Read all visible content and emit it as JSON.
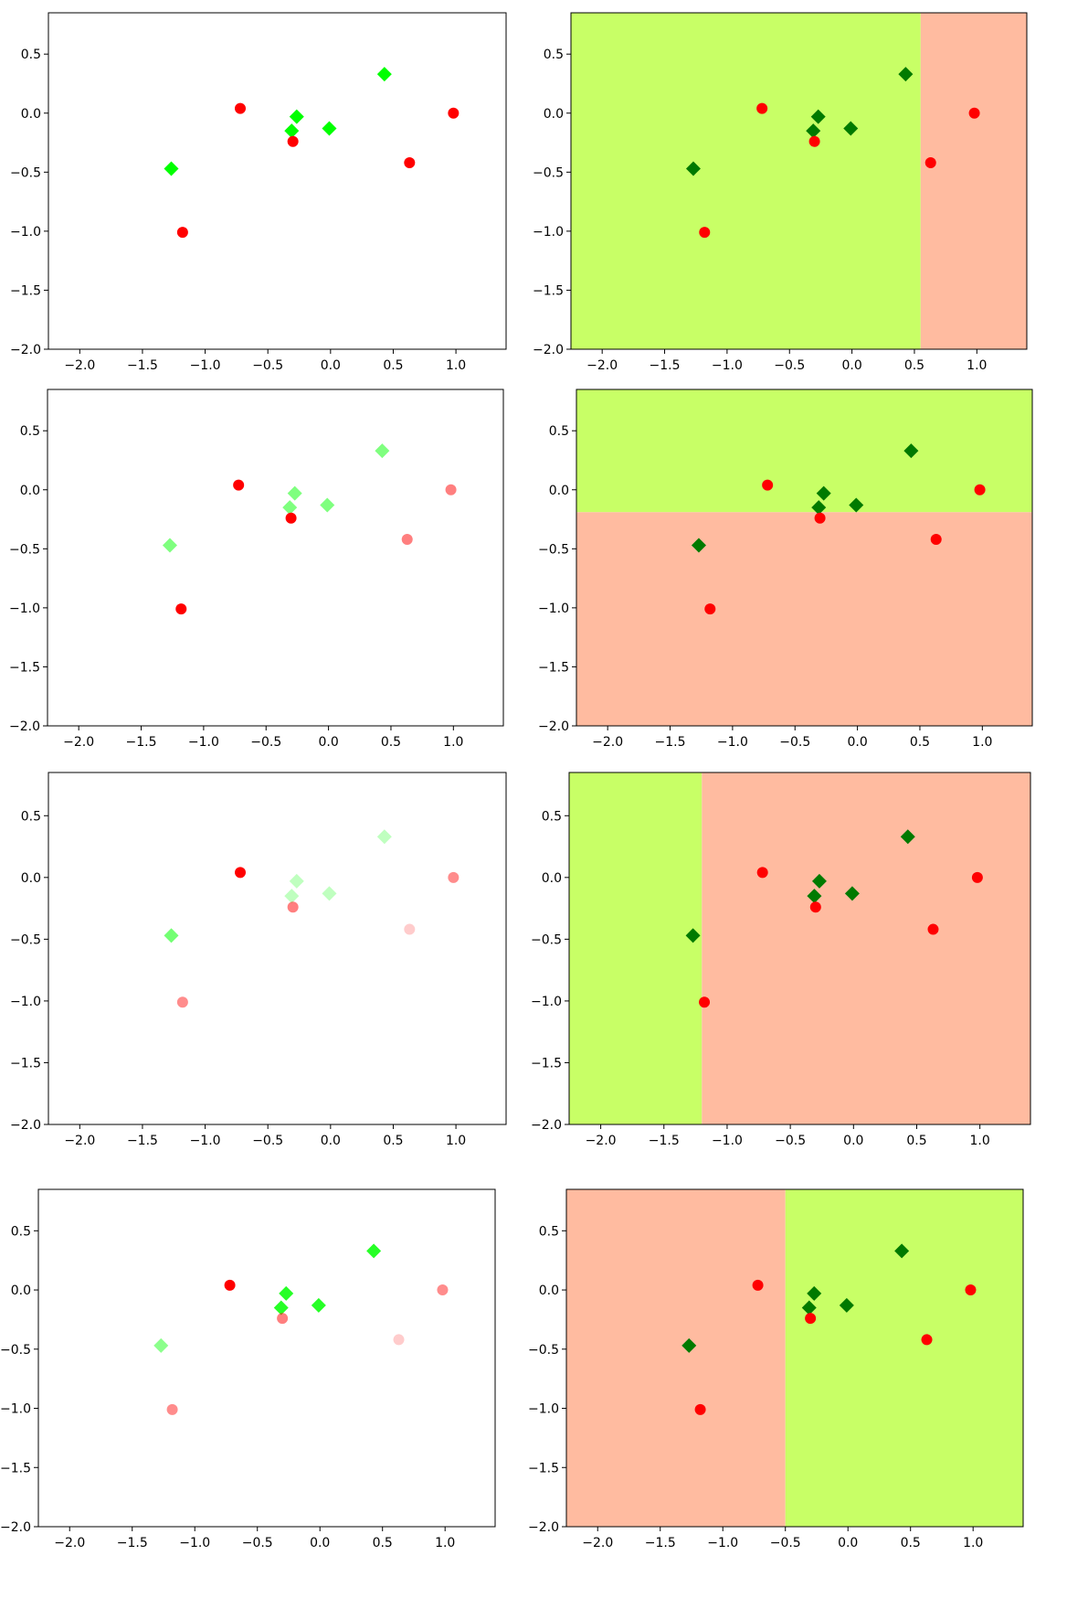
{
  "figure": {
    "points": [
      {
        "x": -1.27,
        "y": -0.47,
        "cls": "green"
      },
      {
        "x": -1.18,
        "y": -1.01,
        "cls": "red"
      },
      {
        "x": -0.72,
        "y": 0.04,
        "cls": "red"
      },
      {
        "x": -0.31,
        "y": -0.15,
        "cls": "green"
      },
      {
        "x": -0.27,
        "y": -0.03,
        "cls": "green"
      },
      {
        "x": -0.3,
        "y": -0.24,
        "cls": "red"
      },
      {
        "x": -0.01,
        "y": -0.13,
        "cls": "green"
      },
      {
        "x": 0.43,
        "y": 0.33,
        "cls": "green"
      },
      {
        "x": 0.63,
        "y": -0.42,
        "cls": "red"
      },
      {
        "x": 0.98,
        "y": 0.0,
        "cls": "red"
      }
    ],
    "colors": {
      "green_marker": "#00ff00",
      "dark_green_marker": "#007a00",
      "red_marker": "#ff0000",
      "region_green": "#c8ff66",
      "region_red": "#ffbba0"
    }
  },
  "chart_data": [
    {
      "type": "scatter",
      "panel": "row1-weights",
      "xlim": [
        -2.25,
        1.4
      ],
      "ylim": [
        -2.0,
        0.85
      ],
      "xticks": [
        "−2.0",
        "−1.5",
        "−1.0",
        "−0.5",
        "0.0",
        "0.5",
        "1.0"
      ],
      "yticks": [
        "0.5",
        "0.0",
        "−0.5",
        "−1.0",
        "−1.5",
        "−2.0"
      ],
      "weights": [
        1,
        1,
        1,
        1,
        1,
        1,
        1,
        1,
        1,
        1
      ]
    },
    {
      "type": "scatter",
      "panel": "row1-stump",
      "xlim": [
        -2.25,
        1.4
      ],
      "ylim": [
        -2.0,
        0.85
      ],
      "xticks": [
        "−2.0",
        "−1.5",
        "−1.0",
        "−0.5",
        "0.0",
        "0.5",
        "1.0"
      ],
      "yticks": [
        "0.5",
        "0.0",
        "−0.5",
        "−1.0",
        "−1.5",
        "−2.0"
      ],
      "split": {
        "axis": "x",
        "value": 0.55,
        "low": "green",
        "high": "red"
      }
    },
    {
      "type": "scatter",
      "panel": "row2-weights",
      "xlim": [
        -2.25,
        1.4
      ],
      "ylim": [
        -2.0,
        0.85
      ],
      "xticks": [
        "−2.0",
        "−1.5",
        "−1.0",
        "−0.5",
        "0.0",
        "0.5",
        "1.0"
      ],
      "yticks": [
        "0.5",
        "0.0",
        "−0.5",
        "−1.0",
        "−1.5",
        "−2.0"
      ],
      "weights": [
        0.5,
        1,
        1,
        0.5,
        0.5,
        1,
        0.5,
        0.5,
        0.5,
        0.5
      ]
    },
    {
      "type": "scatter",
      "panel": "row2-stump",
      "xlim": [
        -2.25,
        1.4
      ],
      "ylim": [
        -2.0,
        0.85
      ],
      "xticks": [
        "−2.0",
        "−1.5",
        "−1.0",
        "−0.5",
        "0.0",
        "0.5",
        "1.0"
      ],
      "yticks": [
        "0.5",
        "0.0",
        "−0.5",
        "−1.0",
        "−1.5",
        "−2.0"
      ],
      "split": {
        "axis": "y",
        "value": -0.19,
        "low": "red",
        "high": "green"
      }
    },
    {
      "type": "scatter",
      "panel": "row3-weights",
      "xlim": [
        -2.25,
        1.4
      ],
      "ylim": [
        -2.0,
        0.85
      ],
      "xticks": [
        "−2.0",
        "−1.5",
        "−1.0",
        "−0.5",
        "0.0",
        "0.5",
        "1.0"
      ],
      "yticks": [
        "0.5",
        "0.0",
        "−0.5",
        "−1.0",
        "−1.5",
        "−2.0"
      ],
      "weights": [
        0.55,
        0.45,
        1,
        0.25,
        0.25,
        0.5,
        0.25,
        0.25,
        0.2,
        0.45
      ]
    },
    {
      "type": "scatter",
      "panel": "row3-stump",
      "xlim": [
        -2.25,
        1.4
      ],
      "ylim": [
        -2.0,
        0.85
      ],
      "xticks": [
        "−2.0",
        "−1.5",
        "−1.0",
        "−0.5",
        "0.0",
        "0.5",
        "1.0"
      ],
      "yticks": [
        "0.5",
        "0.0",
        "−0.5",
        "−1.0",
        "−1.5",
        "−2.0"
      ],
      "split": {
        "axis": "x",
        "value": -1.2,
        "low": "green",
        "high": "red"
      }
    },
    {
      "type": "scatter",
      "panel": "row4-weights",
      "xlim": [
        -2.25,
        1.4
      ],
      "ylim": [
        -2.0,
        0.85
      ],
      "xticks": [
        "−2.0",
        "−1.5",
        "−1.0",
        "−0.5",
        "0.0",
        "0.5",
        "1.0"
      ],
      "yticks": [
        "0.5",
        "0.0",
        "−0.5",
        "−1.0",
        "−1.5",
        "−2.0"
      ],
      "weights": [
        0.45,
        0.45,
        1,
        0.85,
        0.85,
        0.5,
        0.85,
        0.85,
        0.2,
        0.45
      ]
    },
    {
      "type": "scatter",
      "panel": "row4-stump",
      "xlim": [
        -2.25,
        1.4
      ],
      "ylim": [
        -2.0,
        0.85
      ],
      "xticks": [
        "−2.0",
        "−1.5",
        "−1.0",
        "−0.5",
        "0.0",
        "0.5",
        "1.0"
      ],
      "yticks": [
        "0.5",
        "0.0",
        "−0.5",
        "−1.0",
        "−1.5",
        "−2.0"
      ],
      "split": {
        "axis": "x",
        "value": -0.5,
        "low": "red",
        "high": "green"
      }
    }
  ]
}
